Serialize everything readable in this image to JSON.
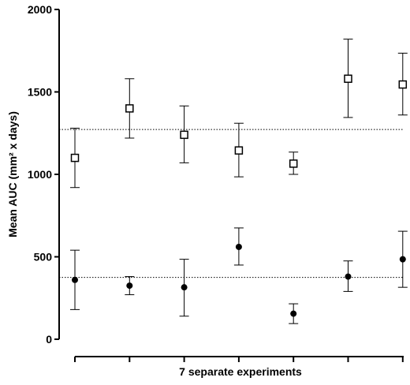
{
  "chart_data": {
    "type": "scatter",
    "xlabel": "7 separate  experiments",
    "ylabel": "Mean AUC (mm² x days)",
    "ylim": [
      0,
      2000
    ],
    "yticks": [
      0,
      500,
      1000,
      1500,
      2000
    ],
    "x": [
      1,
      2,
      3,
      4,
      5,
      6,
      7
    ],
    "grid": false,
    "series": [
      {
        "marker": "open-square",
        "values": [
          1100,
          1400,
          1240,
          1145,
          1065,
          1580,
          1545
        ],
        "error_low": [
          920,
          1220,
          1070,
          985,
          1000,
          1345,
          1360
        ],
        "error_high": [
          1280,
          1580,
          1415,
          1310,
          1135,
          1820,
          1735
        ],
        "mean_line": 1272
      },
      {
        "marker": "filled-circle",
        "values": [
          360,
          325,
          315,
          560,
          155,
          380,
          485
        ],
        "error_low": [
          180,
          270,
          140,
          450,
          95,
          290,
          315
        ],
        "error_high": [
          540,
          380,
          485,
          675,
          215,
          475,
          655
        ],
        "mean_line": 375
      }
    ]
  }
}
